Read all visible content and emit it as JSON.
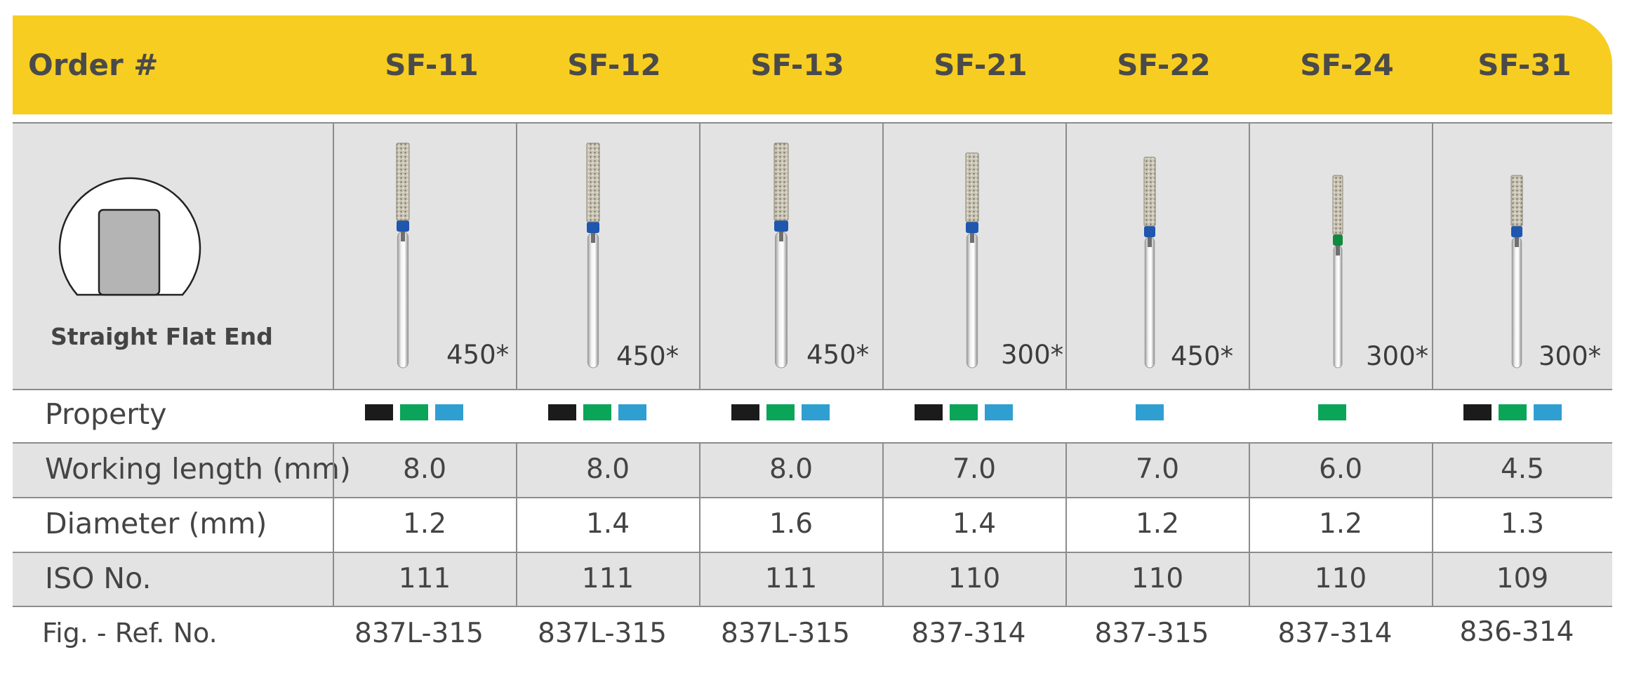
{
  "header": {
    "label": "Order #",
    "codes": [
      "SF-11",
      "SF-12",
      "SF-13",
      "SF-21",
      "SF-22",
      "SF-24",
      "SF-31"
    ]
  },
  "shape": {
    "label": "Straight Flat End",
    "icon": "straight-flat-end-shape-icon"
  },
  "colors": {
    "accent": "#f7cd21",
    "black": "#1b1b1b",
    "green": "#0aa558",
    "blue": "#2f9fd2",
    "ring_blue": "#1e56b0",
    "ring_green": "#0f8a3e"
  },
  "burs": [
    {
      "code": "SF-11",
      "grit": "450*",
      "ring": "blue"
    },
    {
      "code": "SF-12",
      "grit": "450*",
      "ring": "blue"
    },
    {
      "code": "SF-13",
      "grit": "450*",
      "ring": "blue"
    },
    {
      "code": "SF-21",
      "grit": "300*",
      "ring": "blue"
    },
    {
      "code": "SF-22",
      "grit": "450*",
      "ring": "blue"
    },
    {
      "code": "SF-24",
      "grit": "300*",
      "ring": "green"
    },
    {
      "code": "SF-31",
      "grit": "300*",
      "ring": "blue"
    }
  ],
  "property": {
    "label": "Property",
    "swatches": [
      [
        "black",
        "green",
        "blue"
      ],
      [
        "black",
        "green",
        "blue"
      ],
      [
        "black",
        "green",
        "blue"
      ],
      [
        "black",
        "green",
        "blue"
      ],
      [
        "blue"
      ],
      [
        "green"
      ],
      [
        "black",
        "green",
        "blue"
      ]
    ]
  },
  "working_length": {
    "label": "Working length (mm)",
    "values": [
      "8.0",
      "8.0",
      "8.0",
      "7.0",
      "7.0",
      "6.0",
      "4.5"
    ]
  },
  "diameter": {
    "label": "Diameter (mm)",
    "values": [
      "1.2",
      "1.4",
      "1.6",
      "1.4",
      "1.2",
      "1.2",
      "1.3"
    ]
  },
  "iso": {
    "label": "ISO No.",
    "values": [
      "111",
      "111",
      "111",
      "110",
      "110",
      "110",
      "109"
    ]
  },
  "ref": {
    "label": "Fig. - Ref. No.",
    "values": [
      "837L-315",
      "837L-315",
      "837L-315",
      "837-314",
      "837-315",
      "837-314",
      "836-314"
    ]
  }
}
